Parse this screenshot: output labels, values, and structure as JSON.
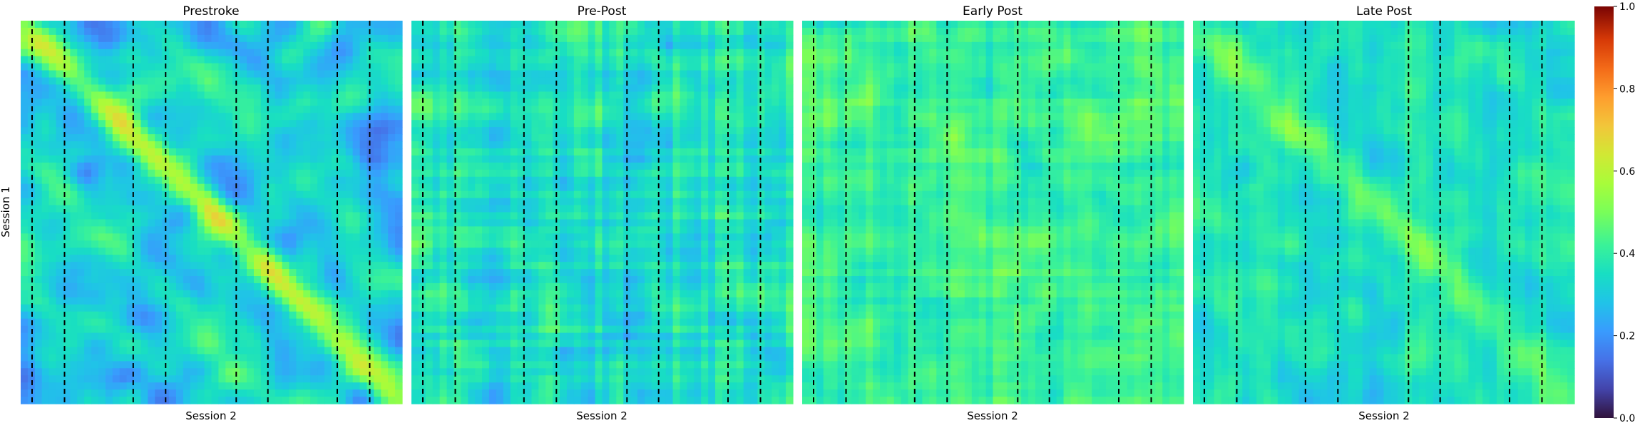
{
  "chart_data": {
    "type": "heatmap",
    "panels": [
      {
        "title": "Prestroke",
        "xlabel": "Session 2",
        "pattern": "diagonal",
        "seed": 11
      },
      {
        "title": "Pre-Post",
        "xlabel": "Session 2",
        "pattern": "noisy",
        "seed": 23
      },
      {
        "title": "Early Post",
        "xlabel": "Session 2",
        "pattern": "uniform",
        "seed": 37
      },
      {
        "title": "Late Post",
        "xlabel": "Session 2",
        "pattern": "weak-diagonal",
        "seed": 53
      }
    ],
    "ylabel": "Session 1",
    "dashed_lines_x": [
      0.03,
      0.115,
      0.295,
      0.38,
      0.565,
      0.648,
      0.83,
      0.915
    ],
    "colorbar": {
      "range": [
        0.0,
        1.0
      ],
      "ticks": [
        "0.0",
        "0.2",
        "0.4",
        "0.6",
        "0.8",
        "1.0"
      ],
      "colormap": "turbo"
    }
  }
}
